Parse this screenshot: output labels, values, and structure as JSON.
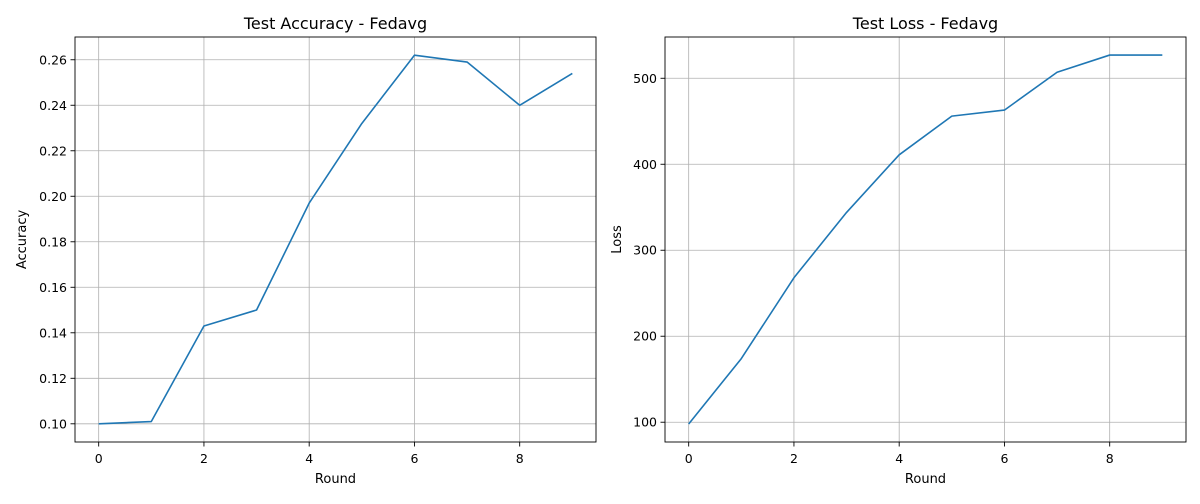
{
  "chart_data": [
    {
      "type": "line",
      "title": "Test Accuracy - Fedavg",
      "xlabel": "Round",
      "ylabel": "Accuracy",
      "xlim": [
        -0.45,
        9.45
      ],
      "ylim": [
        0.092,
        0.27
      ],
      "xticks": [
        0,
        2,
        4,
        6,
        8
      ],
      "yticks": [
        0.1,
        0.12,
        0.14,
        0.16,
        0.18,
        0.2,
        0.22,
        0.24,
        0.26
      ],
      "ytick_labels": [
        "0.10",
        "0.12",
        "0.14",
        "0.16",
        "0.18",
        "0.20",
        "0.22",
        "0.24",
        "0.26"
      ],
      "grid": true,
      "color": "#1f77b4",
      "x": [
        0,
        1,
        2,
        3,
        4,
        5,
        6,
        7,
        8,
        9
      ],
      "values": [
        0.1,
        0.101,
        0.143,
        0.15,
        0.197,
        0.232,
        0.262,
        0.259,
        0.24,
        0.254
      ]
    },
    {
      "type": "line",
      "title": "Test Loss - Fedavg",
      "xlabel": "Round",
      "ylabel": "Loss",
      "xlim": [
        -0.45,
        9.45
      ],
      "ylim": [
        77,
        548
      ],
      "xticks": [
        0,
        2,
        4,
        6,
        8
      ],
      "yticks": [
        100,
        200,
        300,
        400,
        500
      ],
      "ytick_labels": [
        "100",
        "200",
        "300",
        "400",
        "500"
      ],
      "grid": true,
      "color": "#1f77b4",
      "x": [
        0,
        1,
        2,
        3,
        4,
        5,
        6,
        7,
        8,
        9
      ],
      "values": [
        98,
        174,
        268,
        344,
        411,
        456,
        463,
        507,
        527,
        527
      ]
    }
  ]
}
